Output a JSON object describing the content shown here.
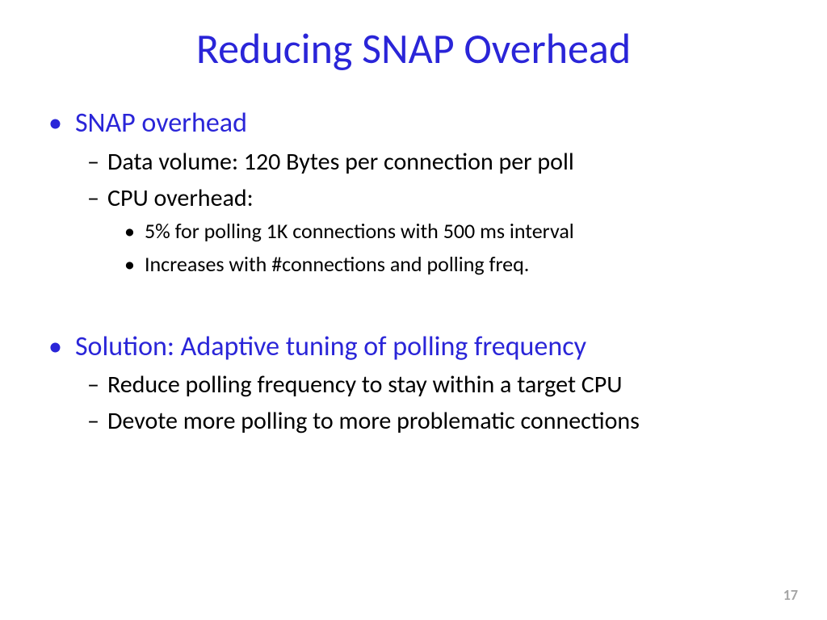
{
  "colors": {
    "accent": "#2a25d8",
    "body_text": "#000000",
    "page_num": "#a6a6a6",
    "background": "#ffffff"
  },
  "typography": {
    "title_fontsize": 52,
    "level1_fontsize": 34,
    "level2_fontsize": 30,
    "level3_fontsize": 26,
    "pagenum_fontsize": 18,
    "font_family": "Calibri"
  },
  "title": "Reducing SNAP Overhead",
  "bullets": {
    "item1": {
      "label": "SNAP overhead",
      "sub1": "Data volume: 120 Bytes per connection per poll",
      "sub2": "CPU overhead:",
      "sub2_a": "5% for polling 1K connections with 500 ms interval",
      "sub2_b": "Increases with #connections and polling freq."
    },
    "item2": {
      "label": "Solution: Adaptive tuning of polling frequency",
      "sub1": "Reduce polling frequency to stay within a target CPU",
      "sub2": "Devote more polling to more problematic connections"
    }
  },
  "page_number": "17",
  "bullet_glyphs": {
    "level1": "•",
    "level2": "–",
    "level3": "•"
  }
}
